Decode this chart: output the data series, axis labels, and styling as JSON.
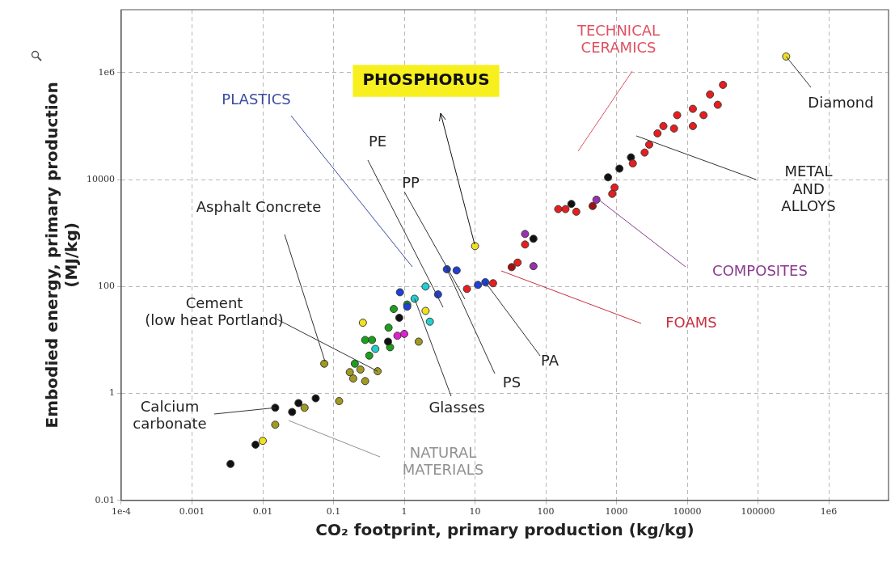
{
  "chart_data": {
    "type": "scatter",
    "xlabel": "CO₂ footprint, primary production (kg/kg)",
    "ylabel": "Embodied energy, primary production\n(MJ/kg)",
    "log": "xy",
    "grid": true,
    "legend": false,
    "marker": "circle",
    "xlim": [
      0.0001,
      7000000
    ],
    "ylim": [
      0.01,
      15000000
    ],
    "xticks": [
      {
        "value": 0.0001,
        "label": "1e-4"
      },
      0.001,
      0.01,
      0.1,
      1,
      10,
      100,
      1000,
      10000,
      100000,
      {
        "value": 1000000,
        "label": "1e6"
      }
    ],
    "yticks": [
      0.01,
      1,
      100,
      10000,
      {
        "value": 1000000,
        "label": "1e6"
      }
    ],
    "series": [
      {
        "color": "#e81e1e",
        "x": [
          32000,
          27000,
          21000,
          12000,
          12000,
          7200,
          6500,
          4600,
          3800,
          2900,
          2500,
          1700,
          940,
          870,
          270,
          190,
          150,
          18,
          7.7,
          40,
          51,
          17000
        ],
        "values": [
          590000,
          250000,
          390000,
          210000,
          100000,
          160000,
          90000,
          100000,
          73000,
          45000,
          32000,
          20000,
          7100,
          5400,
          2500,
          2800,
          2800,
          115,
          90,
          280,
          610,
          160000
        ]
      },
      {
        "color": "#111111",
        "x": [
          760,
          1100,
          1600,
          230,
          67,
          0.0035,
          0.0079,
          0.015,
          0.026,
          0.032,
          0.056,
          0.85,
          0.59
        ],
        "values": [
          11000,
          16000,
          26000,
          3500,
          780,
          0.048,
          0.11,
          0.54,
          0.45,
          0.66,
          0.81,
          26,
          9.3
        ]
      },
      {
        "color": "#1f3fd6",
        "x": [
          0.87,
          4.0,
          5.5,
          3.0,
          1.1,
          11,
          14
        ],
        "values": [
          78,
          210,
          200,
          71,
          42,
          107,
          120
        ]
      },
      {
        "color": "#1aa01a",
        "x": [
          0.71,
          0.6,
          0.28,
          0.35,
          0.32,
          0.2,
          0.63,
          1.1
        ],
        "values": [
          38,
          17,
          10,
          10,
          5.1,
          3.6,
          7.3,
          46
        ]
      },
      {
        "color": "#20d0d0",
        "x": [
          0.39,
          1.4,
          2.0,
          2.3
        ],
        "values": [
          6.8,
          59,
          100,
          22
        ]
      },
      {
        "color": "#a09a20",
        "x": [
          0.074,
          0.17,
          0.19,
          0.28,
          0.24,
          0.42,
          0.12,
          0.039,
          0.015,
          1.6
        ],
        "values": [
          3.6,
          2.5,
          1.9,
          1.7,
          2.8,
          2.6,
          0.72,
          0.54,
          0.26,
          9.3
        ]
      },
      {
        "color": "#f0e020",
        "x": [
          250000,
          10,
          0.26,
          2.0,
          0.01
        ],
        "values": [
          2000000,
          570,
          21,
          35,
          0.13
        ]
      },
      {
        "color": "#e020d0",
        "x": [
          0.8,
          1.0
        ],
        "values": [
          12,
          13
        ]
      },
      {
        "color": "#9a30b0",
        "x": [
          67,
          520,
          51
        ],
        "values": [
          240,
          4200,
          960
        ]
      },
      {
        "color": "#a01010",
        "x": [
          460,
          33
        ],
        "values": [
          3200,
          230
        ]
      }
    ],
    "annotations": [
      "PHOSPHORUS",
      "TECHNICAL\nCERAMICS",
      {
        "text": "Diamond",
        "x": 250000,
        "y": 2000000
      },
      "METAL\nAND\nALLOYS",
      "COMPOSITES",
      "FOAMS",
      {
        "text": "PA",
        "x": 14,
        "y": 120
      },
      {
        "text": "PS",
        "x": 4.0,
        "y": 210
      },
      {
        "text": "Glasses",
        "x": 1.4,
        "y": 59
      },
      "PE",
      "PP",
      "PLASTICS",
      "Asphalt Concrete",
      {
        "text": "Cement\n(low heat Portland)",
        "x": 0.42,
        "y": 2.6
      },
      {
        "text": "Calcium\ncarbonate",
        "x": 0.015,
        "y": 0.54
      },
      "NATURAL\nMATERIALS"
    ]
  }
}
